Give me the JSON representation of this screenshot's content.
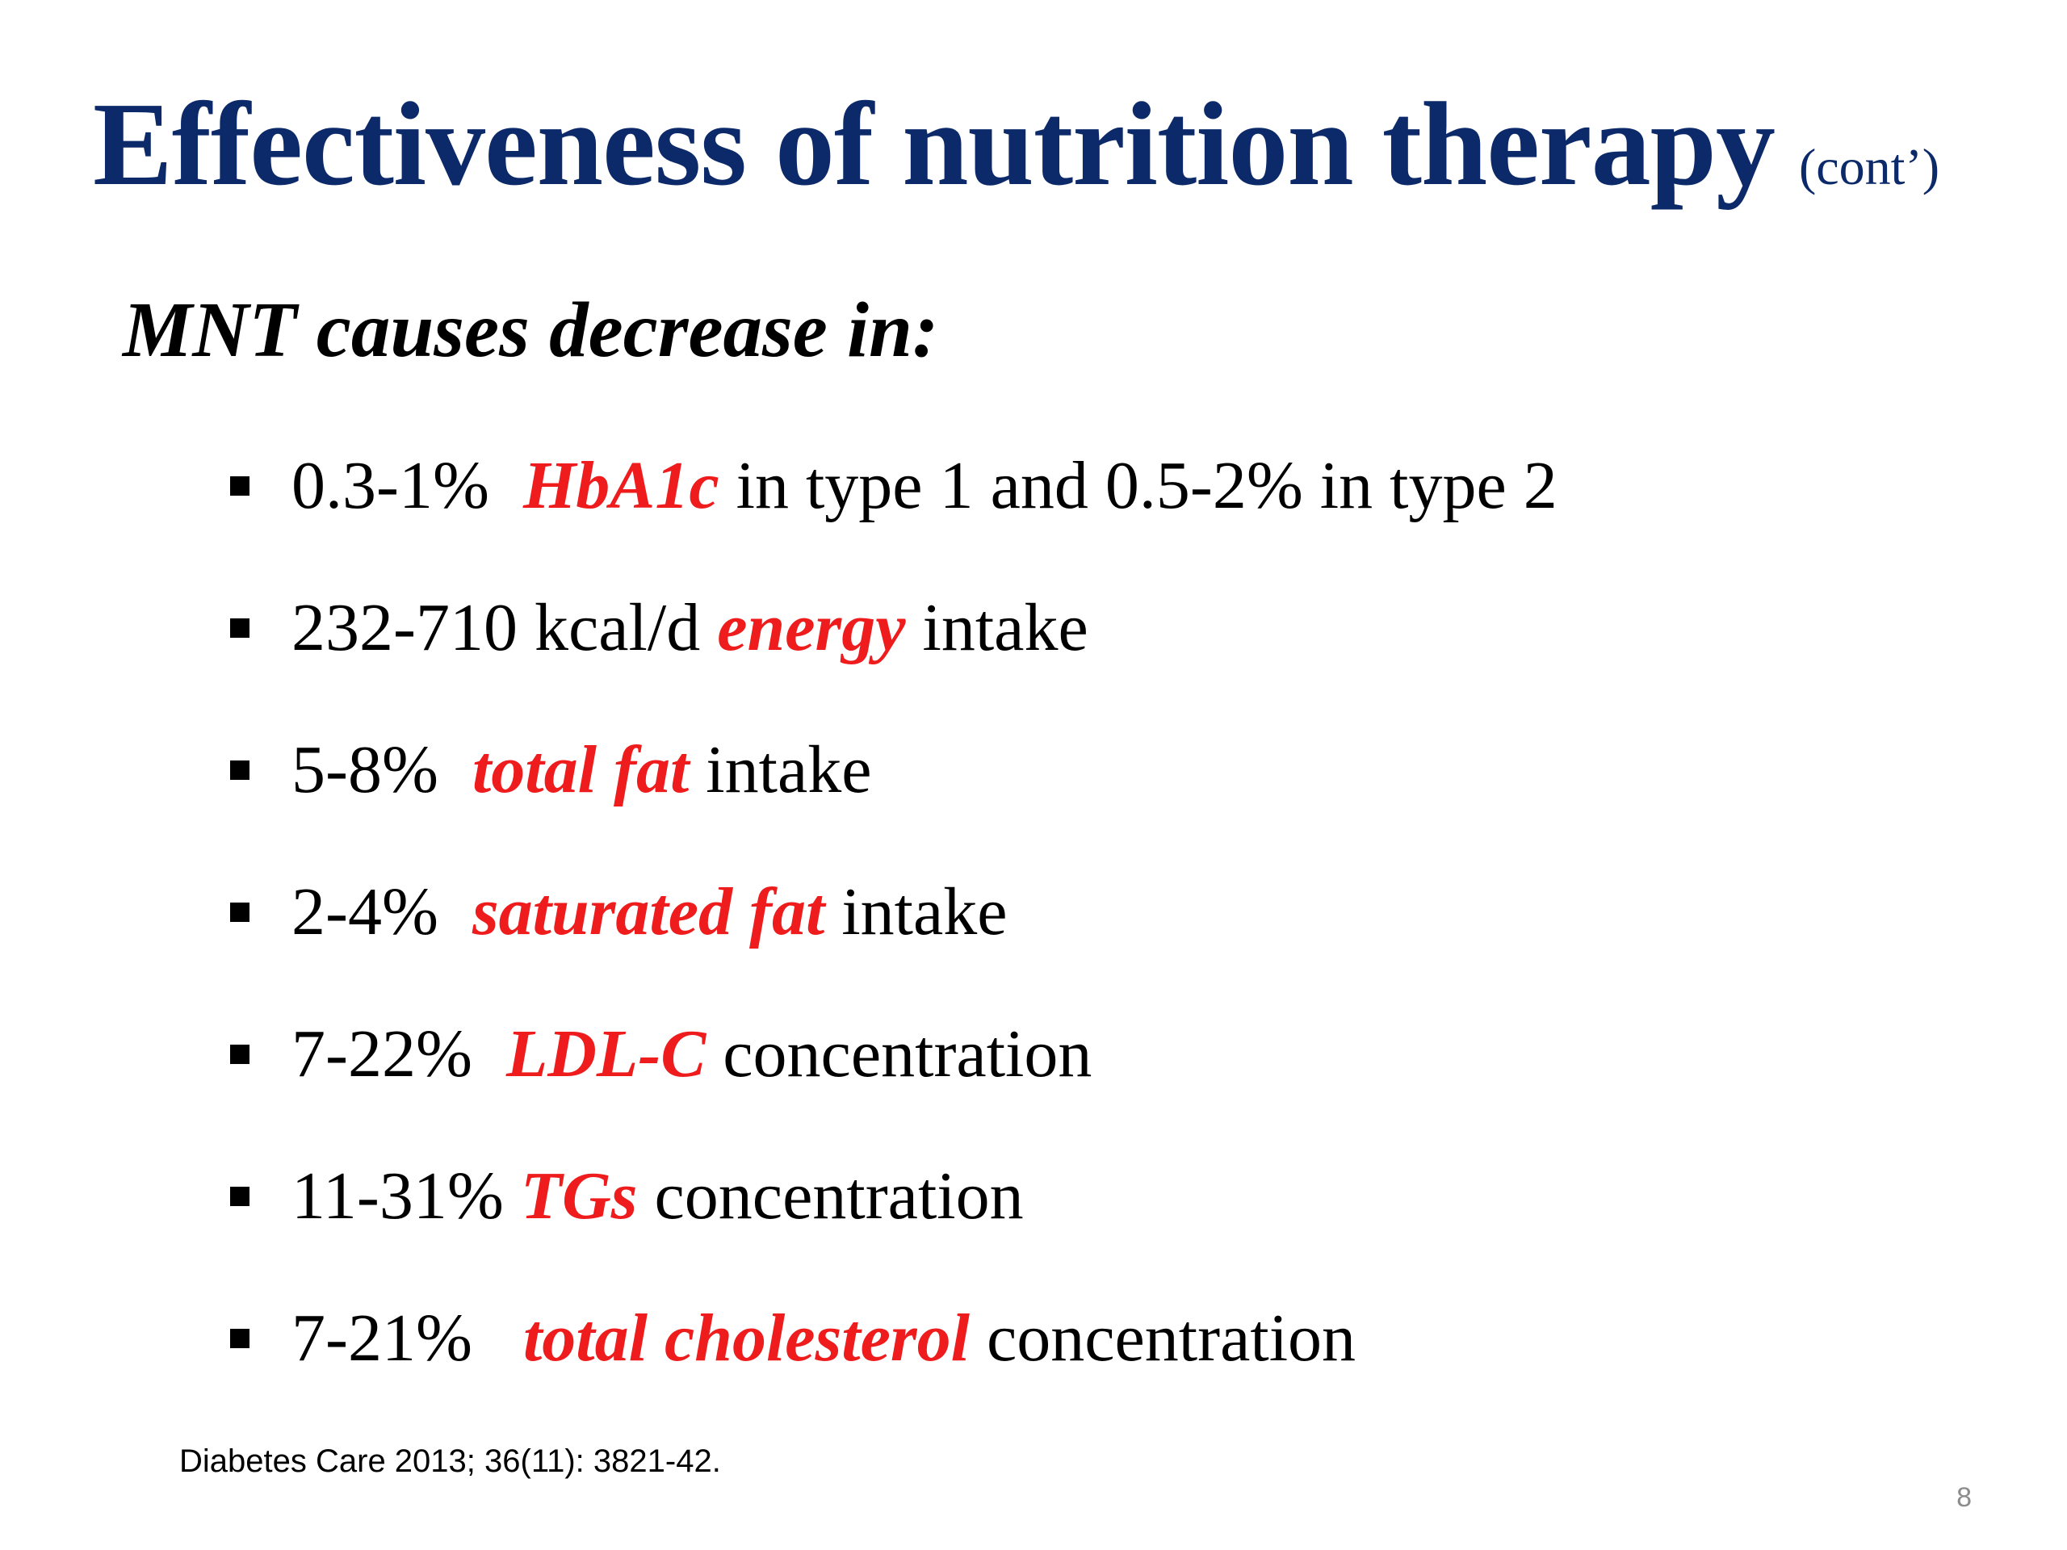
{
  "slide": {
    "title": "Effectiveness of nutrition therapy",
    "title_suffix": "(cont’)",
    "subtitle": "MNT causes decrease in:",
    "bullets": [
      {
        "pre": "0.3-1%  ",
        "term": "HbA1c",
        "post": " in type 1 and 0.5-2% in type 2"
      },
      {
        "pre": "232-710 kcal/d ",
        "term": "energy",
        "post": " intake"
      },
      {
        "pre": "5-8%  ",
        "term": "total fat",
        "post": " intake"
      },
      {
        "pre": "2-4%  ",
        "term": "saturated fat",
        "post": " intake"
      },
      {
        "pre": "7-22%  ",
        "term": "LDL-C",
        "post": " concentration"
      },
      {
        "pre": "11-31% ",
        "term": "TGs",
        "post": " concentration"
      },
      {
        "pre": "7-21%   ",
        "term": "total cholesterol",
        "post": " concentration"
      }
    ],
    "citation": "Diabetes Care 2013; 36(11): 3821-42.",
    "page_number": "8"
  },
  "colors": {
    "title": "#0c2a69",
    "highlight": "#ee1c1c",
    "text": "#000000",
    "page_number": "#8c8c8c"
  }
}
